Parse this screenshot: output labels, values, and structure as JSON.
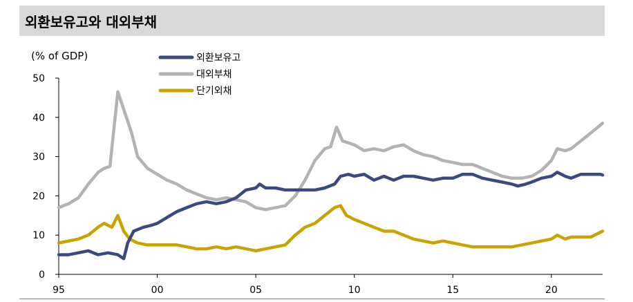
{
  "title": "외환보유고와 대외부채",
  "chart_data": {
    "type": "line",
    "ylabel": "(% of GDP)",
    "ylim": [
      0,
      50
    ],
    "yticks": [
      0,
      10,
      20,
      30,
      40,
      50
    ],
    "xlim": [
      1995,
      2022.6
    ],
    "xticks": [
      {
        "value": 1995,
        "label": "95"
      },
      {
        "value": 2000,
        "label": "00"
      },
      {
        "value": 2005,
        "label": "05"
      },
      {
        "value": 2010,
        "label": "10"
      },
      {
        "value": 2015,
        "label": "15"
      },
      {
        "value": 2020,
        "label": "20"
      }
    ],
    "grid": false,
    "legend": "top-center",
    "series": [
      {
        "name": "외환보유고",
        "color": "#3b4a7e",
        "points": [
          [
            1995,
            5
          ],
          [
            1995.5,
            5
          ],
          [
            1996,
            5.5
          ],
          [
            1996.5,
            6
          ],
          [
            1997,
            5
          ],
          [
            1997.5,
            5.5
          ],
          [
            1998,
            5
          ],
          [
            1998.3,
            4
          ],
          [
            1998.5,
            8
          ],
          [
            1998.8,
            11
          ],
          [
            1999.3,
            12
          ],
          [
            1999.7,
            12.5
          ],
          [
            2000,
            13
          ],
          [
            2000.5,
            14.5
          ],
          [
            2001,
            16
          ],
          [
            2001.5,
            17
          ],
          [
            2002,
            18
          ],
          [
            2002.5,
            18.5
          ],
          [
            2003,
            18
          ],
          [
            2003.5,
            18.5
          ],
          [
            2004,
            19.5
          ],
          [
            2004.5,
            21.5
          ],
          [
            2005,
            22
          ],
          [
            2005.2,
            23
          ],
          [
            2005.5,
            22
          ],
          [
            2006,
            22
          ],
          [
            2006.5,
            21.5
          ],
          [
            2007,
            21.5
          ],
          [
            2007.5,
            21.5
          ],
          [
            2008,
            21.5
          ],
          [
            2008.5,
            22
          ],
          [
            2009,
            23
          ],
          [
            2009.3,
            25
          ],
          [
            2009.7,
            25.5
          ],
          [
            2010,
            25
          ],
          [
            2010.5,
            25.5
          ],
          [
            2011,
            24
          ],
          [
            2011.5,
            25
          ],
          [
            2012,
            24
          ],
          [
            2012.5,
            25
          ],
          [
            2013,
            25
          ],
          [
            2013.5,
            24.5
          ],
          [
            2014,
            24
          ],
          [
            2014.5,
            24.5
          ],
          [
            2015,
            24.5
          ],
          [
            2015.5,
            25.5
          ],
          [
            2016,
            25.5
          ],
          [
            2016.5,
            24.5
          ],
          [
            2017,
            24
          ],
          [
            2017.5,
            23.5
          ],
          [
            2018,
            23
          ],
          [
            2018.3,
            22.5
          ],
          [
            2018.7,
            23
          ],
          [
            2019,
            23.5
          ],
          [
            2019.5,
            24.5
          ],
          [
            2020,
            25
          ],
          [
            2020.3,
            26
          ],
          [
            2020.7,
            25
          ],
          [
            2021,
            24.5
          ],
          [
            2021.5,
            25.5
          ],
          [
            2022,
            25.5
          ],
          [
            2022.5,
            25.5
          ],
          [
            2022.6,
            25.3
          ]
        ]
      },
      {
        "name": "대외부채",
        "color": "#b3b3b3",
        "points": [
          [
            1995,
            17
          ],
          [
            1995.5,
            18
          ],
          [
            1996,
            19.5
          ],
          [
            1996.5,
            23
          ],
          [
            1997,
            26
          ],
          [
            1997.3,
            27
          ],
          [
            1997.6,
            27.5
          ],
          [
            1997.8,
            37
          ],
          [
            1998,
            46.5
          ],
          [
            1998.3,
            42
          ],
          [
            1998.7,
            36
          ],
          [
            1999,
            30
          ],
          [
            1999.5,
            27
          ],
          [
            2000,
            25.5
          ],
          [
            2000.5,
            24
          ],
          [
            2001,
            23
          ],
          [
            2001.5,
            21.5
          ],
          [
            2002,
            20.5
          ],
          [
            2002.5,
            19.5
          ],
          [
            2003,
            19
          ],
          [
            2003.5,
            19.5
          ],
          [
            2004,
            19
          ],
          [
            2004.5,
            18.5
          ],
          [
            2005,
            17
          ],
          [
            2005.5,
            16.5
          ],
          [
            2006,
            17
          ],
          [
            2006.5,
            17.5
          ],
          [
            2007,
            20
          ],
          [
            2007.5,
            24
          ],
          [
            2008,
            29
          ],
          [
            2008.5,
            32
          ],
          [
            2008.8,
            32.5
          ],
          [
            2009.1,
            37.5
          ],
          [
            2009.4,
            34
          ],
          [
            2010,
            33
          ],
          [
            2010.5,
            31.5
          ],
          [
            2011,
            32
          ],
          [
            2011.5,
            31.5
          ],
          [
            2012,
            32.5
          ],
          [
            2012.5,
            33
          ],
          [
            2013,
            31.5
          ],
          [
            2013.5,
            30.5
          ],
          [
            2014,
            30
          ],
          [
            2014.5,
            29
          ],
          [
            2015,
            28.5
          ],
          [
            2015.5,
            28
          ],
          [
            2016,
            28
          ],
          [
            2016.5,
            27
          ],
          [
            2017,
            26
          ],
          [
            2017.5,
            25
          ],
          [
            2018,
            24.5
          ],
          [
            2018.5,
            24.5
          ],
          [
            2019,
            25
          ],
          [
            2019.5,
            26.5
          ],
          [
            2020,
            29
          ],
          [
            2020.3,
            32
          ],
          [
            2020.7,
            31.5
          ],
          [
            2021,
            32
          ],
          [
            2021.5,
            34
          ],
          [
            2022,
            36
          ],
          [
            2022.6,
            38.5
          ]
        ]
      },
      {
        "name": "단기외채",
        "color": "#c9a300",
        "points": [
          [
            1995,
            8
          ],
          [
            1995.5,
            8.5
          ],
          [
            1996,
            9
          ],
          [
            1996.5,
            10
          ],
          [
            1997,
            12
          ],
          [
            1997.3,
            13
          ],
          [
            1997.7,
            12
          ],
          [
            1998,
            15
          ],
          [
            1998.3,
            11
          ],
          [
            1998.6,
            9
          ],
          [
            1999,
            8
          ],
          [
            1999.5,
            7.5
          ],
          [
            2000,
            7.5
          ],
          [
            2000.5,
            7.5
          ],
          [
            2001,
            7.5
          ],
          [
            2001.5,
            7
          ],
          [
            2002,
            6.5
          ],
          [
            2002.5,
            6.5
          ],
          [
            2003,
            7
          ],
          [
            2003.5,
            6.5
          ],
          [
            2004,
            7
          ],
          [
            2004.5,
            6.5
          ],
          [
            2005,
            6
          ],
          [
            2005.5,
            6.5
          ],
          [
            2006,
            7
          ],
          [
            2006.5,
            7.5
          ],
          [
            2007,
            10
          ],
          [
            2007.5,
            12
          ],
          [
            2008,
            13
          ],
          [
            2008.5,
            15
          ],
          [
            2009,
            17
          ],
          [
            2009.3,
            17.5
          ],
          [
            2009.6,
            15
          ],
          [
            2010,
            14
          ],
          [
            2010.5,
            13
          ],
          [
            2011,
            12
          ],
          [
            2011.5,
            11
          ],
          [
            2012,
            11
          ],
          [
            2012.5,
            10
          ],
          [
            2013,
            9
          ],
          [
            2013.5,
            8.5
          ],
          [
            2014,
            8
          ],
          [
            2014.5,
            8.5
          ],
          [
            2015,
            8
          ],
          [
            2015.5,
            7.5
          ],
          [
            2016,
            7
          ],
          [
            2016.5,
            7
          ],
          [
            2017,
            7
          ],
          [
            2017.5,
            7
          ],
          [
            2018,
            7
          ],
          [
            2018.5,
            7.5
          ],
          [
            2019,
            8
          ],
          [
            2019.5,
            8.5
          ],
          [
            2020,
            9
          ],
          [
            2020.3,
            10
          ],
          [
            2020.7,
            9
          ],
          [
            2021,
            9.5
          ],
          [
            2021.5,
            9.5
          ],
          [
            2022,
            9.5
          ],
          [
            2022.6,
            11
          ]
        ]
      }
    ]
  }
}
